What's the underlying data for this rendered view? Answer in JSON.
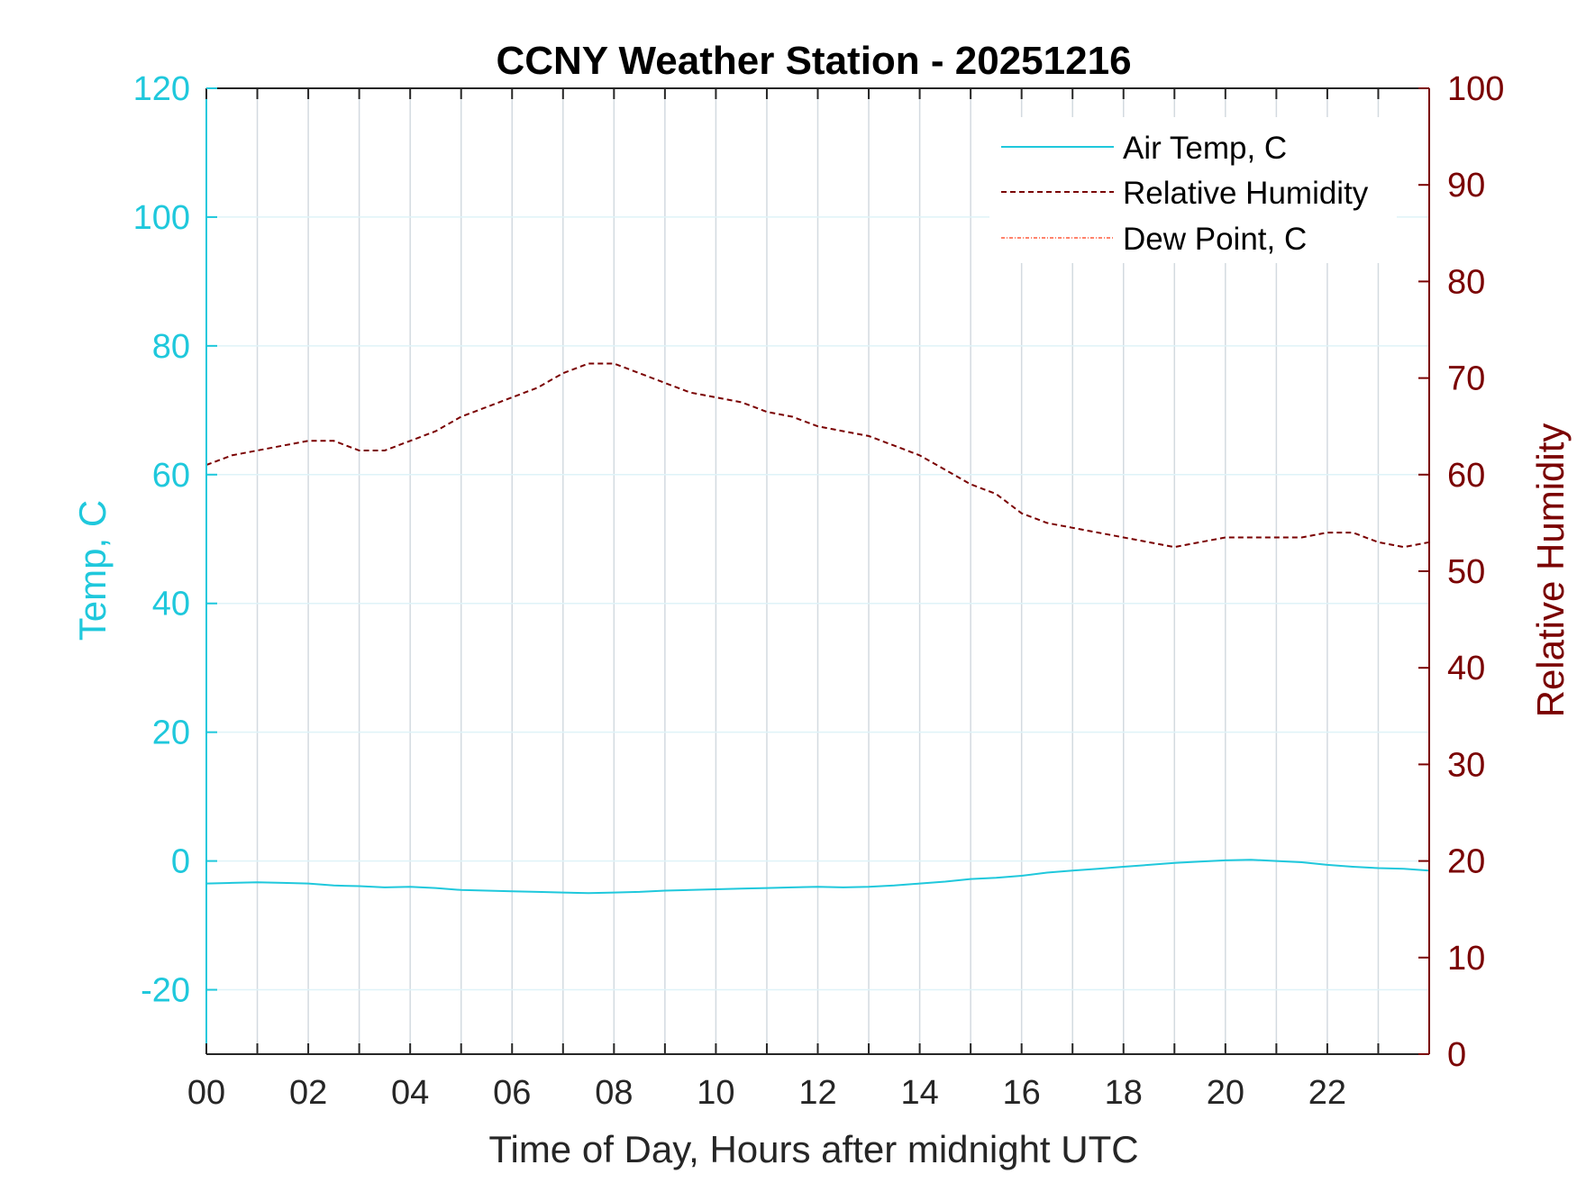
{
  "chart_data": {
    "type": "line",
    "title": "CCNY Weather Station - 20251216",
    "xlabel": "Time of Day, Hours after midnight UTC",
    "ylabel_left": "Temp, C",
    "ylabel_right": "Relative Humidity",
    "xlim": [
      0,
      24
    ],
    "ylim_left": [
      -30,
      120
    ],
    "ylim_right": [
      0,
      100
    ],
    "x_ticks": [
      0,
      2,
      4,
      6,
      8,
      10,
      12,
      14,
      16,
      18,
      20,
      22
    ],
    "x_tick_labels": [
      "00",
      "02",
      "04",
      "06",
      "08",
      "10",
      "12",
      "14",
      "16",
      "18",
      "20",
      "22"
    ],
    "y_left_ticks": [
      120,
      100,
      80,
      60,
      40,
      20,
      0,
      -20
    ],
    "y_left_tick_labels": [
      "120",
      "100",
      "80",
      "60",
      "40",
      "20",
      "0",
      "-20"
    ],
    "y_right_ticks": [
      100,
      90,
      80,
      70,
      60,
      50,
      40,
      30,
      20,
      10,
      0
    ],
    "y_right_tick_labels": [
      "100",
      "90",
      "80",
      "70",
      "60",
      "50",
      "40",
      "30",
      "20",
      "10",
      "0"
    ],
    "grid": true,
    "legend_position": "top-right",
    "colors": {
      "left_axis": "#1fc8dc",
      "right_axis": "#7a0000",
      "dew_point": "#ff5a3c"
    },
    "series": [
      {
        "name": "Air Temp, C",
        "axis": "left",
        "style": "solid",
        "color": "#1fc8dc",
        "x": [
          0,
          0.5,
          1,
          1.5,
          2,
          2.5,
          3,
          3.5,
          4,
          4.5,
          5,
          5.5,
          6,
          6.5,
          7,
          7.5,
          8,
          8.5,
          9,
          9.5,
          10,
          10.5,
          11,
          11.5,
          12,
          12.5,
          13,
          13.5,
          14,
          14.5,
          15,
          15.5,
          16,
          16.5,
          17,
          17.5,
          18,
          18.5,
          19,
          19.5,
          20,
          20.5,
          21,
          21.5,
          22,
          22.5,
          23,
          23.5,
          24
        ],
        "values": [
          -3.5,
          -3.4,
          -3.3,
          -3.4,
          -3.5,
          -3.8,
          -3.9,
          -4.1,
          -4.0,
          -4.2,
          -4.5,
          -4.6,
          -4.7,
          -4.8,
          -4.9,
          -5.0,
          -4.9,
          -4.8,
          -4.6,
          -4.5,
          -4.4,
          -4.3,
          -4.2,
          -4.1,
          -4.0,
          -4.1,
          -4.0,
          -3.8,
          -3.5,
          -3.2,
          -2.8,
          -2.6,
          -2.3,
          -1.8,
          -1.5,
          -1.2,
          -0.9,
          -0.6,
          -0.3,
          -0.1,
          0.1,
          0.2,
          0.0,
          -0.2,
          -0.6,
          -0.9,
          -1.1,
          -1.2,
          -1.5
        ]
      },
      {
        "name": "Relative Humidity",
        "axis": "right",
        "style": "dashed",
        "color": "#7a0000",
        "x": [
          0,
          0.5,
          1,
          1.5,
          2,
          2.5,
          3,
          3.5,
          4,
          4.5,
          5,
          5.5,
          6,
          6.5,
          7,
          7.5,
          8,
          8.5,
          9,
          9.5,
          10,
          10.5,
          11,
          11.5,
          12,
          12.5,
          13,
          13.5,
          14,
          14.5,
          15,
          15.5,
          16,
          16.5,
          17,
          17.5,
          18,
          18.5,
          19,
          19.5,
          20,
          20.5,
          21,
          21.5,
          22,
          22.5,
          23,
          23.5,
          24
        ],
        "values": [
          61,
          62,
          62.5,
          63,
          63.5,
          63.5,
          62.5,
          62.5,
          63.5,
          64.5,
          66,
          67,
          68,
          69,
          70.5,
          71.5,
          71.5,
          70.5,
          69.5,
          68.5,
          68,
          67.5,
          66.5,
          66,
          65,
          64.5,
          64,
          63,
          62,
          60.5,
          59,
          58,
          56,
          55,
          54.5,
          54,
          53.5,
          53,
          52.5,
          53,
          53.5,
          53.5,
          53.5,
          53.5,
          54,
          54,
          53,
          52.5,
          53
        ]
      },
      {
        "name": "Dew Point, C",
        "axis": "left",
        "style": "dash-dot",
        "color": "#ff5a3c",
        "x": [],
        "values": []
      }
    ]
  }
}
